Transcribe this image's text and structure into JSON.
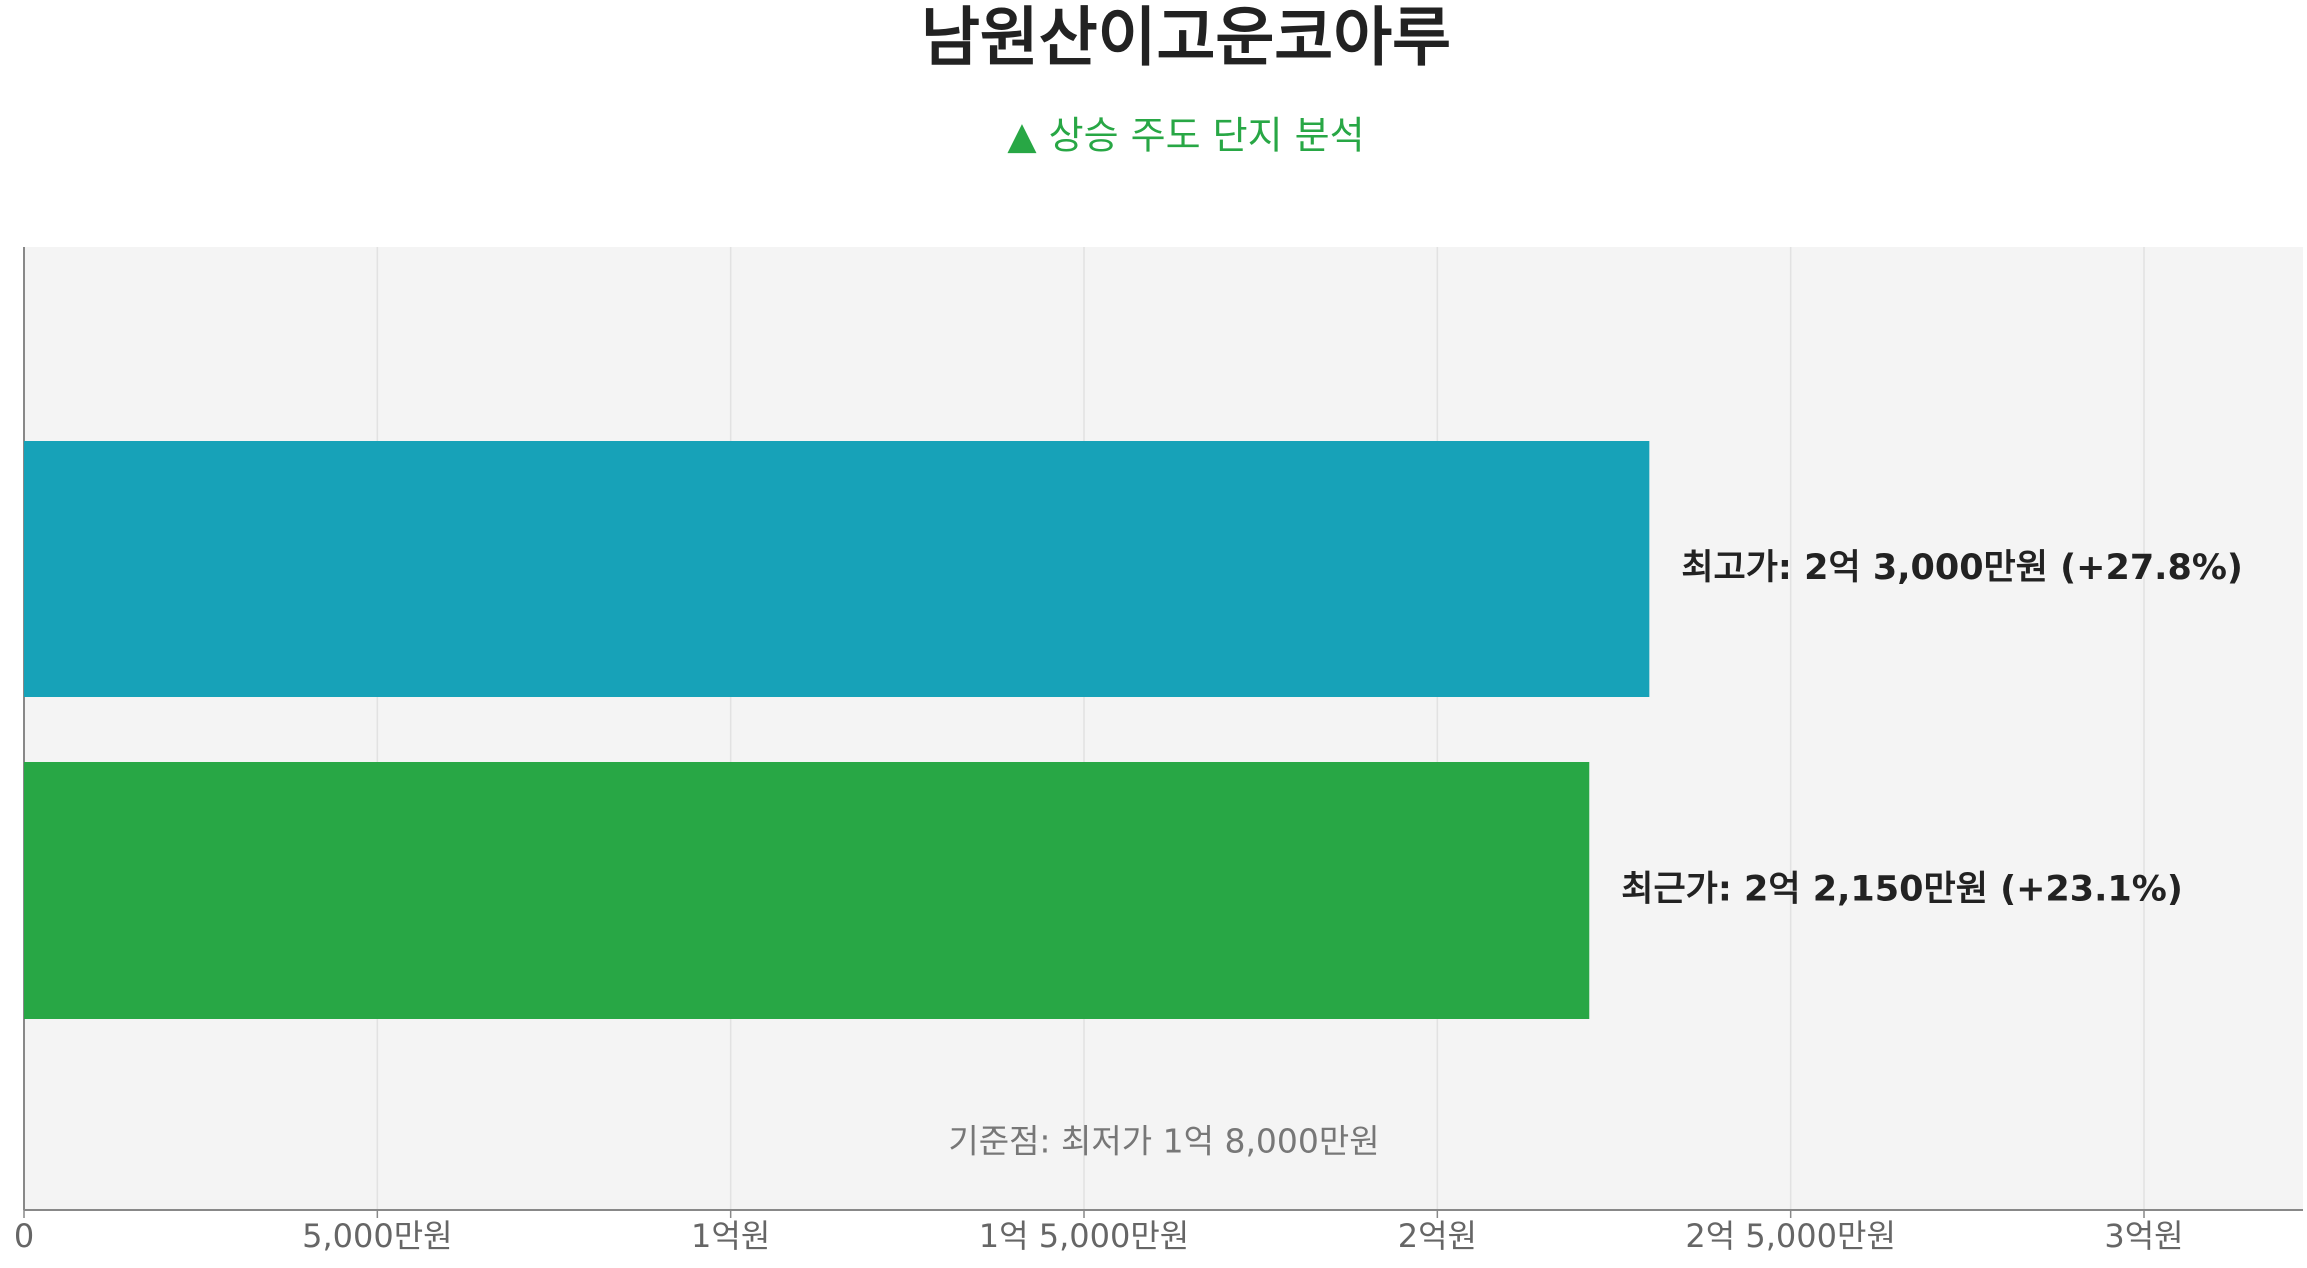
{
  "chart_data": {
    "type": "bar",
    "orientation": "horizontal",
    "title": "남원산이고운코아루",
    "subtitle": "▲ 상승 주도 단지 분석",
    "annotation": "기준점: 최저가 1억 8,000만원",
    "values": [
      23000,
      22150
    ],
    "value_labels": [
      "최고가: 2억 3,000만원 (+27.8%)",
      "최근가: 2억 2,150만원 (+23.1%)"
    ],
    "colors": [
      "#17a2b8",
      "#28a745"
    ],
    "xlim": [
      0,
      32250
    ],
    "xticks": [
      0,
      {
        "value": 5000,
        "label": "5,000만원"
      },
      {
        "value": 10000,
        "label": "1억원"
      },
      {
        "value": 15000,
        "label": "1억 5,000만원"
      },
      {
        "value": 20000,
        "label": "2억원"
      },
      {
        "value": 25000,
        "label": "2억 5,000만원"
      },
      {
        "value": 30000,
        "label": "3억원"
      }
    ],
    "grid": true
  }
}
